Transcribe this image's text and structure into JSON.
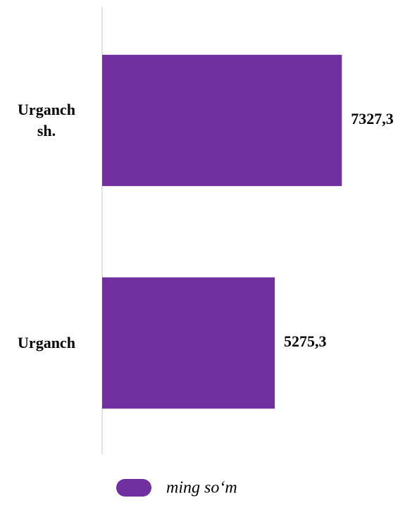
{
  "chart_data": {
    "type": "bar",
    "orientation": "horizontal",
    "categories": [
      "Urganch sh.",
      "Urganch"
    ],
    "series": [
      {
        "name": "ming so‘m",
        "color": "#7030a0",
        "values": [
          7327.3,
          5275.3
        ],
        "value_labels": [
          "7327,3",
          "5275,3"
        ]
      }
    ],
    "xlim": [
      0,
      9000
    ],
    "legend": "bottom"
  }
}
